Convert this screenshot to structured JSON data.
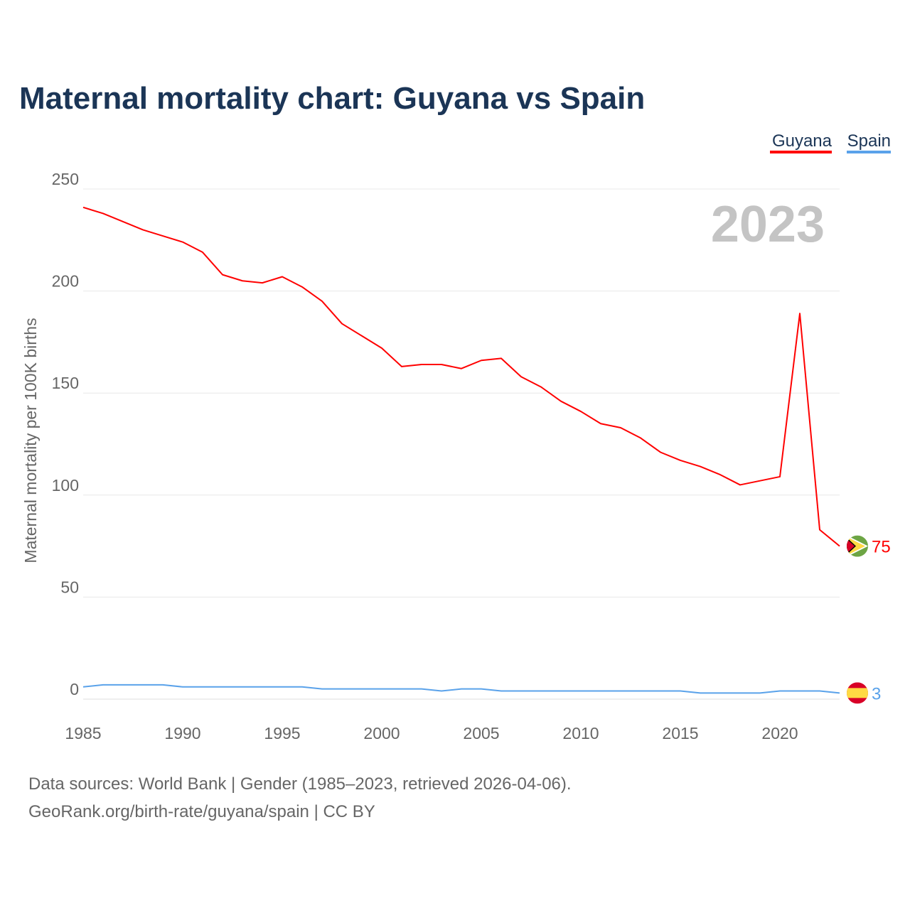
{
  "chart_data": {
    "type": "line",
    "title": "Maternal mortality chart: Guyana vs Spain",
    "ylabel": "Maternal mortality per 100K births",
    "xlabel": "",
    "year_label": "2023",
    "xlim": [
      1985,
      2023
    ],
    "ylim": [
      0,
      250
    ],
    "x_ticks": [
      1985,
      1990,
      1995,
      2000,
      2005,
      2010,
      2015,
      2020
    ],
    "y_ticks": [
      0,
      50,
      100,
      150,
      200,
      250
    ],
    "grid": true,
    "legend_position": "top-right",
    "x": [
      1985,
      1986,
      1987,
      1988,
      1989,
      1990,
      1991,
      1992,
      1993,
      1994,
      1995,
      1996,
      1997,
      1998,
      1999,
      2000,
      2001,
      2002,
      2003,
      2004,
      2005,
      2006,
      2007,
      2008,
      2009,
      2010,
      2011,
      2012,
      2013,
      2014,
      2015,
      2016,
      2017,
      2018,
      2019,
      2020,
      2021,
      2022,
      2023
    ],
    "series": [
      {
        "name": "Guyana",
        "color": "#ff0000",
        "end_label": "75",
        "values": [
          241,
          238,
          234,
          230,
          227,
          224,
          219,
          208,
          205,
          204,
          207,
          202,
          195,
          184,
          178,
          172,
          163,
          164,
          164,
          162,
          166,
          167,
          158,
          153,
          146,
          141,
          135,
          133,
          128,
          121,
          117,
          114,
          110,
          105,
          107,
          109,
          189,
          83,
          75
        ]
      },
      {
        "name": "Spain",
        "color": "#5aa2ea",
        "end_label": "3",
        "values": [
          6,
          7,
          7,
          7,
          7,
          6,
          6,
          6,
          6,
          6,
          6,
          6,
          5,
          5,
          5,
          5,
          5,
          5,
          4,
          5,
          5,
          4,
          4,
          4,
          4,
          4,
          4,
          4,
          4,
          4,
          4,
          3,
          3,
          3,
          3,
          4,
          4,
          4,
          3
        ]
      }
    ]
  },
  "footer": {
    "line1": "Data sources: World Bank | Gender (1985–2023, retrieved 2026-04-06).",
    "line2": "GeoRank.org/birth-rate/guyana/spain | CC BY"
  }
}
